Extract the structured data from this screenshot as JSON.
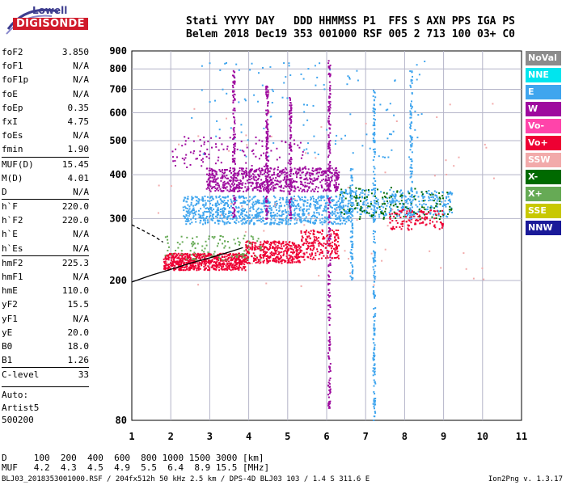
{
  "logo": {
    "top": "Lowell",
    "main": "DIGISONDE"
  },
  "header": {
    "line1": "Stati YYYY DAY   DDD HHMMSS P1  FFS S AXN PPS IGA PS",
    "line2": "Belem 2018 Dec19 353 001000 RSF 005 2 713 100 03+ C0"
  },
  "params": [
    {
      "label": "foF2",
      "value": "3.850"
    },
    {
      "label": "foF1",
      "value": "N/A"
    },
    {
      "label": "foF1p",
      "value": "N/A"
    },
    {
      "label": "foE",
      "value": "N/A"
    },
    {
      "label": "foEp",
      "value": "0.35"
    },
    {
      "label": "fxI",
      "value": "4.75"
    },
    {
      "label": "foEs",
      "value": "N/A"
    },
    {
      "label": "fmin",
      "value": "1.90"
    },
    {
      "label": "MUF(D)",
      "value": "15.45",
      "sep": true
    },
    {
      "label": "M(D)",
      "value": "4.01"
    },
    {
      "label": "D",
      "value": "N/A"
    },
    {
      "label": "h`F",
      "value": "220.0",
      "sep": true
    },
    {
      "label": "h`F2",
      "value": "220.0"
    },
    {
      "label": "h`E",
      "value": "N/A"
    },
    {
      "label": "h`Es",
      "value": "N/A"
    },
    {
      "label": "hmF2",
      "value": "225.3",
      "sep": true
    },
    {
      "label": "hmF1",
      "value": "N/A"
    },
    {
      "label": "hmE",
      "value": "110.0"
    },
    {
      "label": "yF2",
      "value": "15.5"
    },
    {
      "label": "yF1",
      "value": "N/A"
    },
    {
      "label": "yE",
      "value": "20.0"
    },
    {
      "label": "B0",
      "value": "18.0"
    },
    {
      "label": "B1",
      "value": "1.26"
    },
    {
      "label": "C-level",
      "value": "33",
      "sep": true
    }
  ],
  "auto": {
    "line1": "Auto:",
    "line2": "Artist5",
    "line3": "500200"
  },
  "legend": [
    {
      "label": "NoVal",
      "color": "#8c8c8c"
    },
    {
      "label": "NNE",
      "color": "#00e5ee"
    },
    {
      "label": "E",
      "color": "#3fa5ee"
    },
    {
      "label": "W",
      "color": "#9e0a9e"
    },
    {
      "label": "Vo-",
      "color": "#ff44aa"
    },
    {
      "label": "Vo+",
      "color": "#ee0033"
    },
    {
      "label": "SSW",
      "color": "#f2aaaa"
    },
    {
      "label": "X-",
      "color": "#006a00"
    },
    {
      "label": "X+",
      "color": "#66aa55"
    },
    {
      "label": "SSE",
      "color": "#c8c800"
    },
    {
      "label": "NNW",
      "color": "#1a1a99"
    }
  ],
  "dmuf": {
    "line1": "D     100  200  400  600  800 1000 1500 3000 [km]",
    "line2": "MUF   4.2  4.3  4.5  4.9  5.5  6.4  8.9 15.5 [MHz]"
  },
  "footer": {
    "left": "BLJ03_2018353001000.RSF / 204fx512h 50 kHz 2.5 km / DPS-4D BLJ03 103 / 1.4 S 311.6 E",
    "right": "Ion2Png v. 1.3.17"
  },
  "chart_data": {
    "type": "scatter",
    "title": "",
    "xlabel": "",
    "ylabel": "",
    "xlim": [
      1,
      11
    ],
    "ylim": [
      80,
      900
    ],
    "xticks": [
      "1",
      "2",
      "3",
      "4",
      "5",
      "6",
      "7",
      "8",
      "9",
      "10",
      "11"
    ],
    "yticks": [
      "80",
      "200",
      "300",
      "400",
      "500",
      "600",
      "700",
      "800",
      "900"
    ],
    "y_scale": "log",
    "grid": true,
    "ordinary_trace": {
      "name": "",
      "color": "#000000",
      "x": [
        1.0,
        1.5,
        2.0,
        2.5,
        3.0,
        3.5,
        3.85
      ],
      "y": [
        198,
        207,
        215,
        224,
        232,
        241,
        248
      ]
    },
    "extraordinary_trace": {
      "name": "",
      "color": "#000000",
      "style": "dashed",
      "x": [
        1.0,
        1.3,
        1.6,
        1.8
      ],
      "y": [
        288,
        277,
        266,
        257
      ]
    },
    "echo_clusters": [
      {
        "x": [
          1.8,
          3.9
        ],
        "y": [
          215,
          240
        ],
        "color": "#ee0033",
        "n": 650
      },
      {
        "x": [
          3.9,
          5.3
        ],
        "y": [
          225,
          260
        ],
        "color": "#ee0033",
        "n": 350
      },
      {
        "x": [
          5.3,
          6.3
        ],
        "y": [
          230,
          280
        ],
        "color": "#ee0033",
        "n": 200
      },
      {
        "x": [
          2.3,
          6.6
        ],
        "y": [
          290,
          350
        ],
        "color": "#3fa5ee",
        "n": 900
      },
      {
        "x": [
          2.9,
          6.3
        ],
        "y": [
          360,
          420
        ],
        "color": "#9e0a9e",
        "n": 700
      },
      {
        "x": [
          6.3,
          9.2
        ],
        "y": [
          305,
          365
        ],
        "color": "#3fa5ee",
        "n": 350
      },
      {
        "x": [
          6.3,
          9.2
        ],
        "y": [
          300,
          370
        ],
        "color": "#006a00",
        "n": 140
      },
      {
        "x": [
          7.6,
          9.0
        ],
        "y": [
          280,
          320
        ],
        "color": "#ee0033",
        "n": 120
      },
      {
        "x": [
          1.8,
          4.3
        ],
        "y": [
          230,
          270
        ],
        "color": "#66aa55",
        "n": 110
      },
      {
        "x": [
          2.0,
          5.5
        ],
        "y": [
          420,
          520
        ],
        "color": "#9e0a9e",
        "n": 110
      },
      {
        "x": [
          2.5,
          8.5
        ],
        "y": [
          450,
          850
        ],
        "color": "#3fa5ee",
        "n": 120
      },
      {
        "x": [
          1.5,
          10.5
        ],
        "y": [
          180,
          700
        ],
        "color": "#f2aaaa",
        "n": 70
      }
    ],
    "echo_columns": [
      {
        "x": 6.05,
        "y": [
          85,
          900
        ],
        "color": "#9e0a9e",
        "n": 220
      },
      {
        "x": 7.2,
        "y": [
          80,
          700
        ],
        "color": "#3fa5ee",
        "n": 200
      },
      {
        "x": 8.15,
        "y": [
          300,
          800
        ],
        "color": "#3fa5ee",
        "n": 90
      },
      {
        "x": 4.45,
        "y": [
          300,
          720
        ],
        "color": "#9e0a9e",
        "n": 140
      },
      {
        "x": 3.6,
        "y": [
          300,
          800
        ],
        "color": "#9e0a9e",
        "n": 110
      },
      {
        "x": 5.05,
        "y": [
          300,
          680
        ],
        "color": "#9e0a9e",
        "n": 100
      },
      {
        "x": 6.62,
        "y": [
          200,
          420
        ],
        "color": "#3fa5ee",
        "n": 80
      }
    ]
  }
}
